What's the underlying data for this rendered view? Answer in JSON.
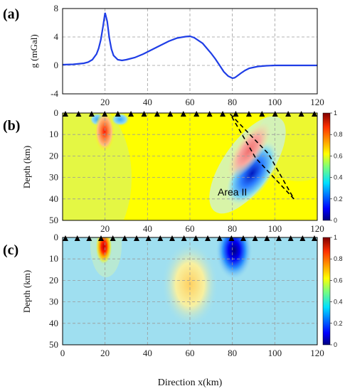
{
  "panels": {
    "a": {
      "label": "(a)",
      "ylabel": "g (mGal)"
    },
    "b": {
      "label": "(b)",
      "ylabel": "Depth (km)",
      "annotation": "Area II"
    },
    "c": {
      "label": "(c)",
      "ylabel": "Depth (km)"
    }
  },
  "xlabel": "Direction x(km)",
  "colors": {
    "curve": "#1f3ee6",
    "station": "#000000",
    "area_box": "#000000"
  },
  "chart_data": [
    {
      "type": "line",
      "panel": "a",
      "title": "",
      "ylabel": "g (mGal)",
      "xlim": [
        0,
        120
      ],
      "ylim": [
        -4,
        8
      ],
      "xticks": [
        "20",
        "40",
        "60",
        "80",
        "100",
        "120"
      ],
      "yticks": [
        "8",
        "4",
        "0",
        "-4"
      ],
      "grid": true,
      "series": [
        {
          "x": [
            0,
            5,
            10,
            12,
            14,
            16,
            17,
            18,
            19,
            20,
            21,
            22,
            23,
            24,
            26,
            28,
            30,
            34,
            38,
            42,
            46,
            50,
            54,
            58,
            60,
            62,
            66,
            70,
            72,
            74,
            76,
            78,
            80,
            81,
            82,
            84,
            86,
            88,
            92,
            96,
            100,
            110,
            120
          ],
          "y": [
            0.1,
            0.15,
            0.3,
            0.45,
            0.8,
            1.6,
            2.4,
            3.6,
            5.4,
            7.4,
            6.2,
            3.9,
            2.3,
            1.4,
            0.8,
            0.7,
            0.8,
            1.1,
            1.6,
            2.2,
            2.8,
            3.4,
            3.85,
            4.05,
            4.1,
            3.9,
            3.1,
            1.7,
            0.9,
            0.0,
            -0.9,
            -1.5,
            -1.8,
            -1.75,
            -1.55,
            -1.1,
            -0.7,
            -0.4,
            -0.15,
            -0.05,
            0.0,
            0.0,
            0.0
          ]
        }
      ]
    },
    {
      "type": "heatmap",
      "panel": "b",
      "ylabel": "Depth (km)",
      "xlim": [
        0,
        120
      ],
      "ylim": [
        50,
        0
      ],
      "xticks": [
        "20",
        "40",
        "60",
        "80",
        "100",
        "120"
      ],
      "yticks": [
        "0",
        "10",
        "20",
        "30",
        "40",
        "50"
      ],
      "colorbar": {
        "min": 0,
        "max": 1,
        "ticks": [
          "1",
          "0.8",
          "0.6",
          "0.4",
          "0.2",
          "0"
        ]
      },
      "background_value": 0.62,
      "stations": 20,
      "features": [
        {
          "x": 20,
          "depth": 7,
          "value": 1.0,
          "note": "positive body"
        },
        {
          "x": 16,
          "depth": 2,
          "value": 0.3,
          "note": "near-surface low"
        },
        {
          "x": 83,
          "depth": 15,
          "value": 0.8,
          "note": "inclined positive"
        },
        {
          "x": 87,
          "depth": 22,
          "value": 0.0,
          "note": "inclined negative"
        }
      ],
      "area_box_corners": [
        [
          79,
          0.5
        ],
        [
          97,
          19
        ],
        [
          109,
          40
        ],
        [
          91,
          21
        ]
      ],
      "grid": true
    },
    {
      "type": "heatmap",
      "panel": "c",
      "ylabel": "Depth (km)",
      "xlim": [
        0,
        120
      ],
      "ylim": [
        50,
        0
      ],
      "xticks": [
        "0",
        "20",
        "40",
        "60",
        "80",
        "100",
        "120"
      ],
      "yticks": [
        "0",
        "10",
        "20",
        "30",
        "40",
        "50"
      ],
      "colorbar": {
        "min": 0,
        "max": 1,
        "ticks": [
          "1",
          "0.8",
          "0.6",
          "0.4",
          "0.2",
          "0"
        ]
      },
      "background_value": 0.2,
      "stations": 22,
      "features": [
        {
          "x": 20,
          "depth": 4,
          "value": 1.0,
          "note": "shallow positive"
        },
        {
          "x": 60,
          "depth": 20,
          "value": 0.35,
          "note": "broad positive"
        },
        {
          "x": 80,
          "depth": 5,
          "value": 0.0,
          "note": "shallow negative"
        }
      ],
      "grid": true
    }
  ]
}
